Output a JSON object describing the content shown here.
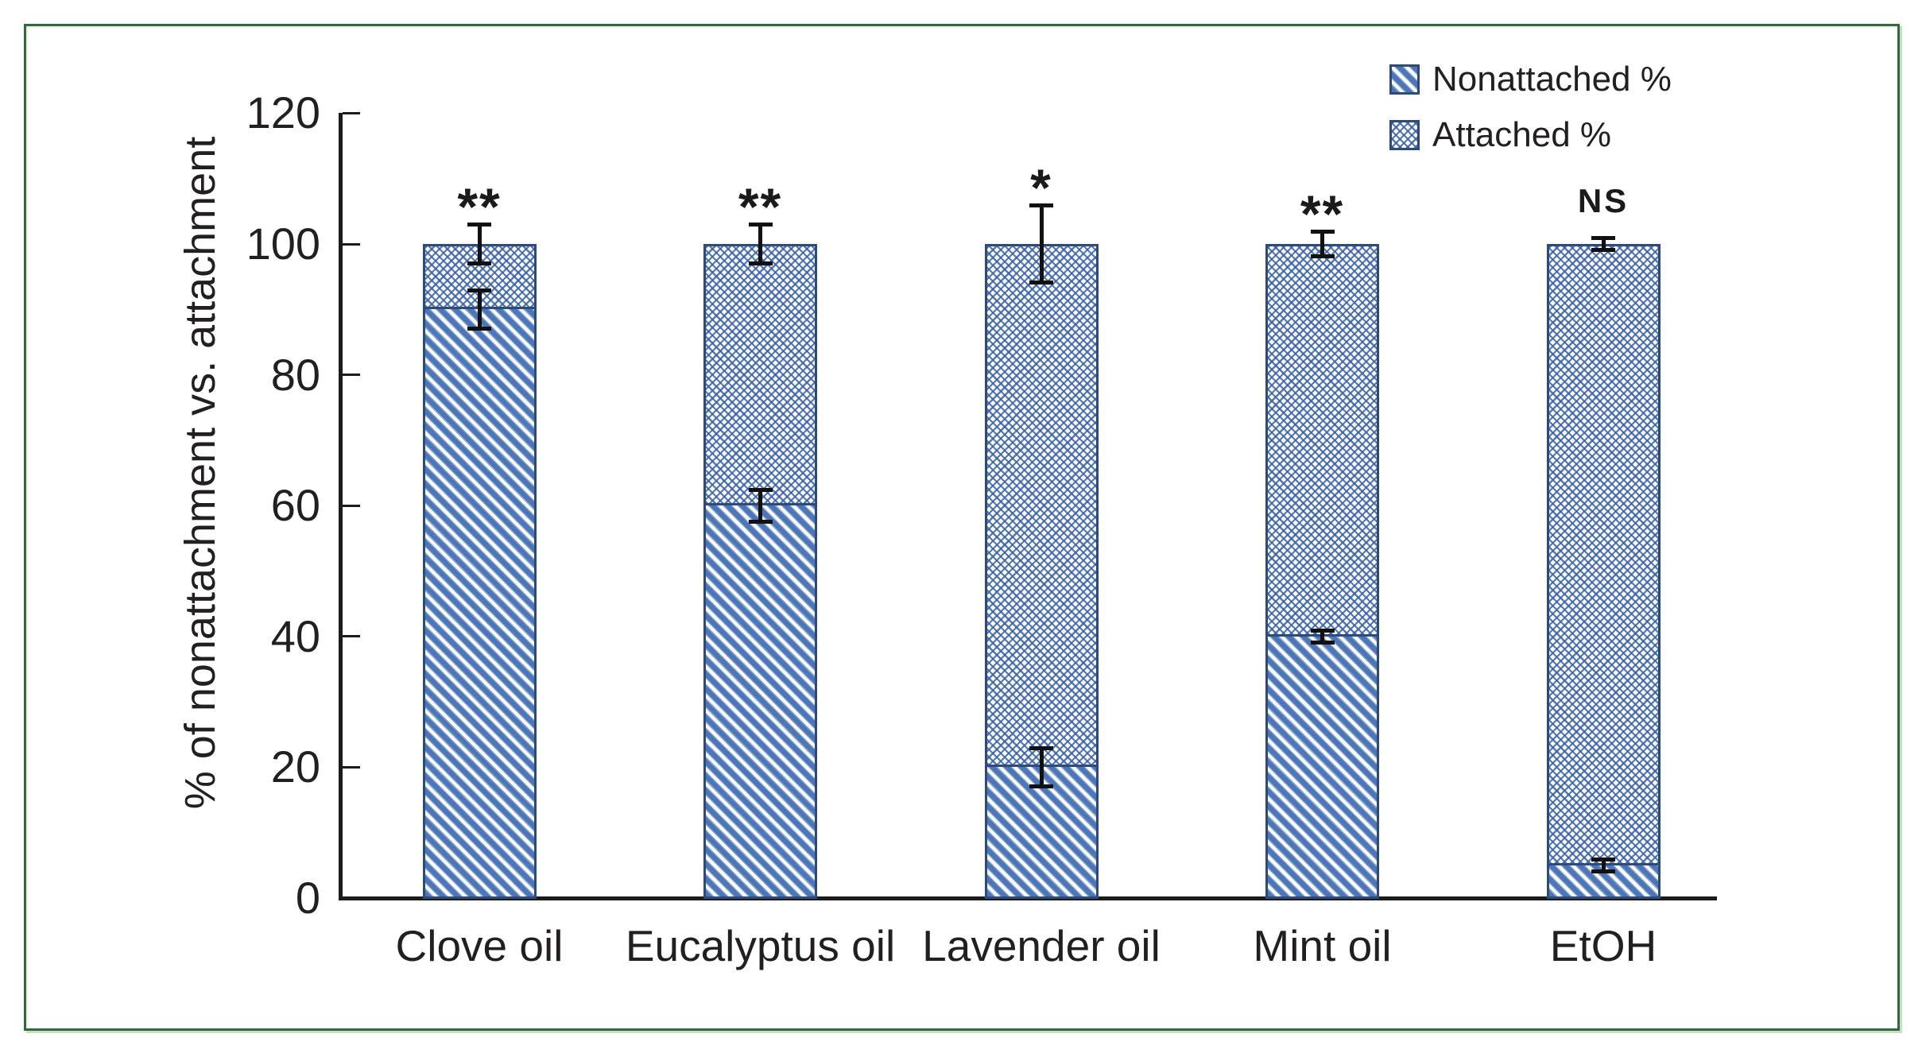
{
  "figure": {
    "frame_color": "#2e6b36",
    "background": "#ffffff"
  },
  "chart_data": {
    "type": "bar",
    "subtype": "stacked-vertical",
    "title": "",
    "xlabel": "",
    "ylabel": "% of nonattachment vs. attachment",
    "ylim": [
      0,
      120
    ],
    "yticks": [
      0,
      20,
      40,
      60,
      80,
      100,
      120
    ],
    "grid": "off",
    "categories": [
      "Clove oil",
      "Eucalyptus oil",
      "Lavender oil",
      "Mint oil",
      "EtOH"
    ],
    "series": [
      {
        "name": "Nonattached %",
        "pattern": "diagonal-stripes",
        "values": [
          90,
          60,
          20,
          40,
          5
        ],
        "errors": [
          3,
          2.5,
          3,
          1,
          1
        ]
      },
      {
        "name": "Attached %",
        "pattern": "crosshatch-lattice",
        "values": [
          10,
          40,
          80,
          60,
          95
        ]
      }
    ],
    "totals": [
      100,
      100,
      100,
      100,
      100
    ],
    "total_errors": [
      3,
      3,
      6,
      2,
      1
    ],
    "significance": [
      "**",
      "**",
      "*",
      "**",
      "NS"
    ],
    "legend": {
      "position": "top-right",
      "items": [
        "Nonattached %",
        "Attached %"
      ]
    },
    "colors": {
      "stripe_blue": "#4b76b7",
      "lattice_blue": "#3860a6",
      "bar_border": "#2c4a7c",
      "axis": "#1c1c1c",
      "text": "#231f20",
      "error_bar": "#111111"
    }
  }
}
